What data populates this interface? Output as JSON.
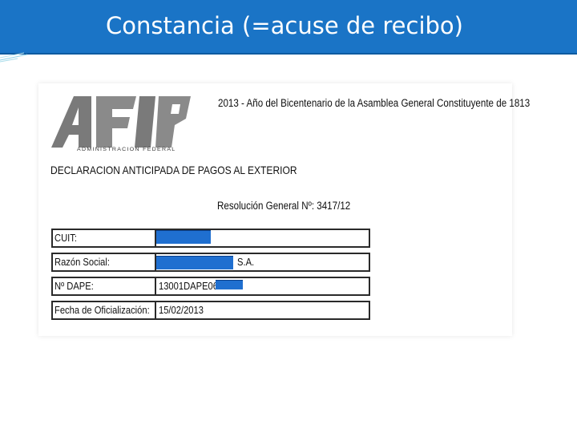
{
  "slide": {
    "title": "Constancia (=acuse de recibo)"
  },
  "document": {
    "logo_text": "AFIP",
    "logo_subtitle": "ADMINISTRACION FEDERAL",
    "year_motto": "2013 - Año del Bicentenario de la Asamblea General Constituyente de 1813",
    "heading": "DECLARACION ANTICIPADA DE PAGOS AL EXTERIOR",
    "resolution": "Resolución General Nº: 3417/12",
    "fields": [
      {
        "label": "CUIT:",
        "value": "",
        "redacted": true
      },
      {
        "label": "Razón Social:",
        "value": "S.A.",
        "redacted": true
      },
      {
        "label": "Nº DAPE:",
        "value": "13001DAPE06",
        "redacted": true
      },
      {
        "label": "Fecha de Oficialización:",
        "value": "15/02/2013",
        "redacted": false
      }
    ]
  },
  "colors": {
    "title_bar": "#1a74c6",
    "redaction": "#1f6fd0"
  }
}
